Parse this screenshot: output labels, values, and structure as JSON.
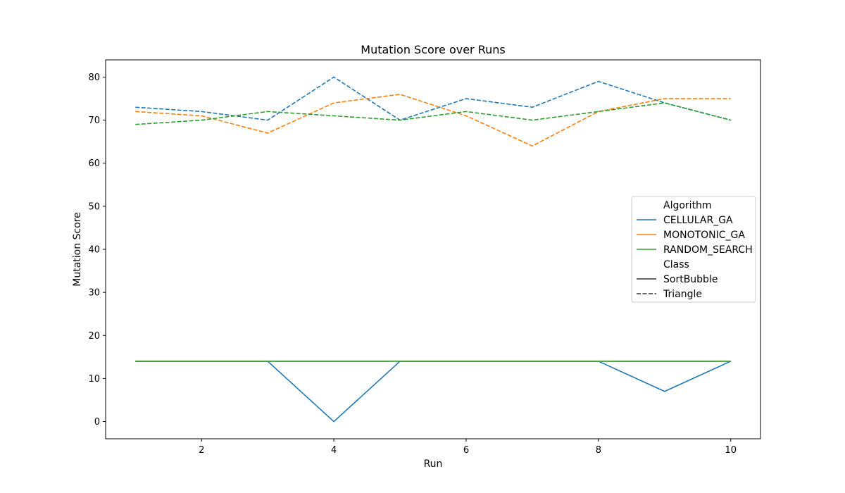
{
  "chart_data": {
    "type": "line",
    "title": "Mutation Score over Runs",
    "xlabel": "Run",
    "ylabel": "Mutation Score",
    "xlim": [
      0.55,
      10.45
    ],
    "ylim": [
      -4,
      84
    ],
    "xticks": [
      2,
      4,
      6,
      8,
      10
    ],
    "yticks": [
      0,
      10,
      20,
      30,
      40,
      50,
      60,
      70,
      80
    ],
    "grid": false,
    "legend_position": "center-right",
    "x": [
      1,
      2,
      3,
      4,
      5,
      6,
      7,
      8,
      9,
      10
    ],
    "series": [
      {
        "algorithm": "CELLULAR_GA",
        "class": "SortBubble",
        "color": "#1f77b4",
        "style": "solid",
        "values": [
          14,
          14,
          14,
          0,
          14,
          14,
          14,
          14,
          7,
          14
        ]
      },
      {
        "algorithm": "MONOTONIC_GA",
        "class": "SortBubble",
        "color": "#ff7f0e",
        "style": "solid",
        "values": [
          14,
          14,
          14,
          14,
          14,
          14,
          14,
          14,
          14,
          14
        ]
      },
      {
        "algorithm": "RANDOM_SEARCH",
        "class": "SortBubble",
        "color": "#2ca02c",
        "style": "solid",
        "values": [
          14,
          14,
          14,
          14,
          14,
          14,
          14,
          14,
          14,
          14
        ]
      },
      {
        "algorithm": "CELLULAR_GA",
        "class": "Triangle",
        "color": "#1f77b4",
        "style": "dashed",
        "values": [
          73,
          72,
          70,
          80,
          70,
          75,
          73,
          79,
          74,
          70
        ]
      },
      {
        "algorithm": "MONOTONIC_GA",
        "class": "Triangle",
        "color": "#ff7f0e",
        "style": "dashed",
        "values": [
          72,
          71,
          67,
          74,
          76,
          71,
          64,
          72,
          75,
          75
        ]
      },
      {
        "algorithm": "RANDOM_SEARCH",
        "class": "Triangle",
        "color": "#2ca02c",
        "style": "dashed",
        "values": [
          69,
          70,
          72,
          71,
          70,
          72,
          70,
          72,
          74,
          70
        ]
      }
    ],
    "legend": {
      "algorithm_header": "Algorithm",
      "algorithms": [
        {
          "label": "CELLULAR_GA",
          "color": "#1f77b4"
        },
        {
          "label": "MONOTONIC_GA",
          "color": "#ff7f0e"
        },
        {
          "label": "RANDOM_SEARCH",
          "color": "#2ca02c"
        }
      ],
      "class_header": "Class",
      "classes": [
        {
          "label": "SortBubble",
          "style": "solid"
        },
        {
          "label": "Triangle",
          "style": "dashed"
        }
      ]
    }
  }
}
